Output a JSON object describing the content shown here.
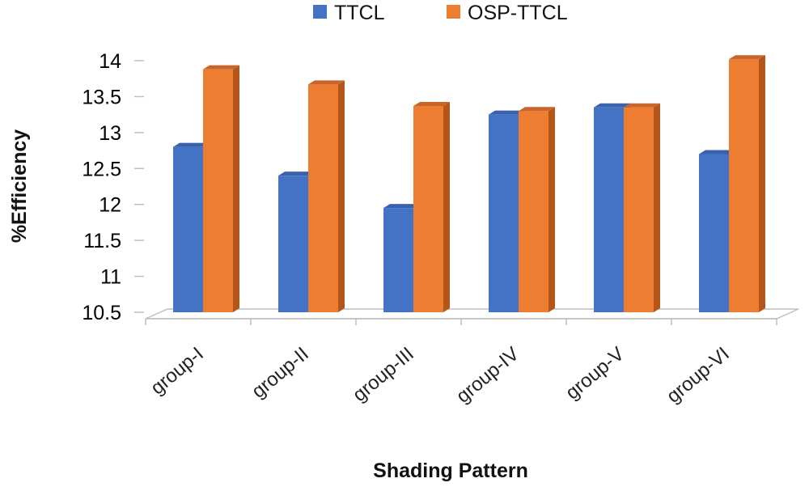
{
  "chart_data": {
    "type": "bar",
    "title": "",
    "xlabel": "Shading Pattern",
    "ylabel": "%Efficiency",
    "ylim": [
      10.5,
      14
    ],
    "yticks": [
      "10.5",
      "11",
      "11.5",
      "12",
      "12.5",
      "13",
      "13.5",
      "14"
    ],
    "categories": [
      "group-I",
      "group-II",
      "group-III",
      "group-IV",
      "group-V",
      "group-VI"
    ],
    "series": [
      {
        "name": "TTCL",
        "color": "#4472C4",
        "side": "#2F5597",
        "top": "#3A62AC",
        "values": [
          12.8,
          12.4,
          11.95,
          13.25,
          13.35,
          12.7
        ]
      },
      {
        "name": "OSP-TTCL",
        "color": "#ED7D31",
        "side": "#B4561A",
        "top": "#C8652A",
        "values": [
          13.88,
          13.67,
          13.37,
          13.3,
          13.35,
          14.02
        ]
      }
    ],
    "legend_position": "top",
    "grid": false,
    "style": "3d-clustered-column"
  }
}
